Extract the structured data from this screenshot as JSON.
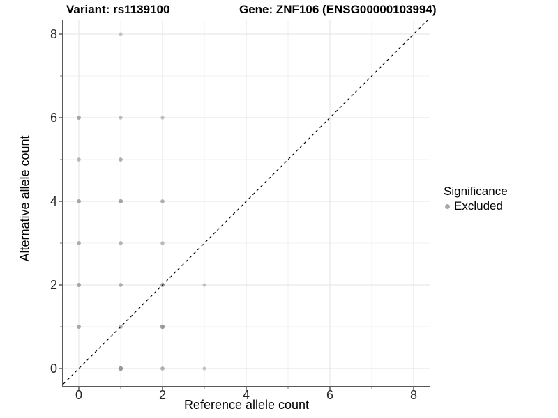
{
  "titles": {
    "variant": "Variant: rs1139100",
    "gene": "Gene: ZNF106 (ENSG00000103994)"
  },
  "legend": {
    "title": "Significance",
    "items": [
      {
        "label": "Excluded",
        "color": "#a9a9a9"
      }
    ]
  },
  "chart_data": {
    "type": "scatter",
    "title": "Variant: rs1139100 / Gene: ZNF106 (ENSG00000103994)",
    "xlabel": "Reference allele count",
    "ylabel": "Alternative allele count",
    "xlim": [
      -0.37,
      8.38
    ],
    "ylim": [
      -0.42,
      8.35
    ],
    "major_breaks": [
      0,
      2,
      4,
      6,
      8
    ],
    "minor_breaks": [
      1,
      3,
      5,
      7
    ],
    "grid": true,
    "legend_position": "right",
    "point_color": "#808080",
    "identity_line": {
      "slope": 1,
      "intercept": 0,
      "style": "dashed",
      "color": "#000000"
    },
    "points": [
      {
        "x": 1,
        "y": 0,
        "alpha": 0.8,
        "r": 3.2
      },
      {
        "x": 2,
        "y": 0,
        "alpha": 0.6,
        "r": 2.9
      },
      {
        "x": 3,
        "y": 0,
        "alpha": 0.4,
        "r": 2.6
      },
      {
        "x": 0,
        "y": 1,
        "alpha": 0.65,
        "r": 3.0
      },
      {
        "x": 1,
        "y": 1,
        "alpha": 0.6,
        "r": 2.9
      },
      {
        "x": 2,
        "y": 1,
        "alpha": 0.78,
        "r": 3.2
      },
      {
        "x": 0,
        "y": 2,
        "alpha": 0.65,
        "r": 3.0
      },
      {
        "x": 1,
        "y": 2,
        "alpha": 0.6,
        "r": 2.9
      },
      {
        "x": 2,
        "y": 2,
        "alpha": 0.65,
        "r": 3.0
      },
      {
        "x": 3,
        "y": 2,
        "alpha": 0.4,
        "r": 2.6
      },
      {
        "x": 0,
        "y": 3,
        "alpha": 0.6,
        "r": 2.9
      },
      {
        "x": 1,
        "y": 3,
        "alpha": 0.55,
        "r": 2.9
      },
      {
        "x": 2,
        "y": 3,
        "alpha": 0.5,
        "r": 2.8
      },
      {
        "x": 0,
        "y": 4,
        "alpha": 0.65,
        "r": 3.0
      },
      {
        "x": 1,
        "y": 4,
        "alpha": 0.7,
        "r": 3.1
      },
      {
        "x": 2,
        "y": 4,
        "alpha": 0.6,
        "r": 2.9
      },
      {
        "x": 0,
        "y": 5,
        "alpha": 0.5,
        "r": 2.8
      },
      {
        "x": 1,
        "y": 5,
        "alpha": 0.6,
        "r": 2.9
      },
      {
        "x": 0,
        "y": 6,
        "alpha": 0.65,
        "r": 3.0
      },
      {
        "x": 1,
        "y": 6,
        "alpha": 0.48,
        "r": 2.7
      },
      {
        "x": 2,
        "y": 6,
        "alpha": 0.45,
        "r": 2.7
      },
      {
        "x": 1,
        "y": 8,
        "alpha": 0.42,
        "r": 2.6
      }
    ],
    "colors": {
      "grid_major": "#e3e3e3",
      "grid_minor": "#f1f1f1",
      "axis_line": "#595959",
      "tick_major": "#333333",
      "tick_minor": "#777777",
      "tick_label": "#262626"
    }
  }
}
